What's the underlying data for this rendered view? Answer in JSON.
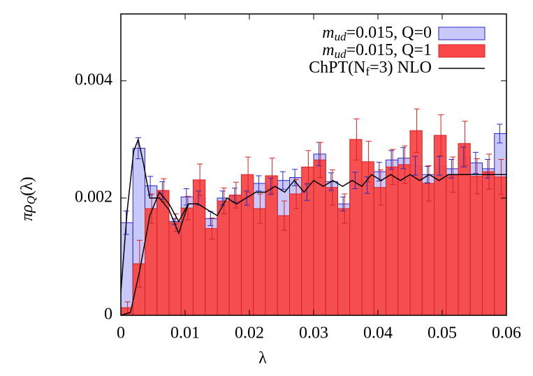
{
  "chart_data": {
    "type": "histogram",
    "xlabel": "λ",
    "ylabel": "πρQ(λ)",
    "bins": [
      0,
      0.001875,
      0.00375,
      0.005625,
      0.0075,
      0.009375,
      0.01125,
      0.013125,
      0.015,
      0.016875,
      0.01875,
      0.020625,
      0.0225,
      0.024375,
      0.02625,
      0.028125,
      0.03,
      0.031875,
      0.03375,
      0.035625,
      0.0375,
      0.039375,
      0.04125,
      0.043125,
      0.045,
      0.046875,
      0.04875,
      0.050625,
      0.0525,
      0.054375,
      0.05625,
      0.058125,
      0.06
    ],
    "series": [
      {
        "name": "mud=0.015, Q=0",
        "color": "#c8c8fa",
        "edge": "#2828c8",
        "values": [
          0.00158,
          0.00285,
          0.00221,
          0.00213,
          0.0016,
          0.00202,
          0.002,
          0.00165,
          0.002,
          0.00205,
          0.002,
          0.00225,
          0.0022,
          0.0023,
          0.00235,
          0.0021,
          0.00275,
          0.00228,
          0.0019,
          0.0023,
          0.00222,
          0.00245,
          0.00265,
          0.00268,
          0.00255,
          0.0024,
          0.00255,
          0.0025,
          0.0027,
          0.0026,
          0.0025,
          0.0031
        ],
        "errors": [
          0.0002,
          0.00018,
          0.00016,
          0.00015,
          5e-05,
          0.00014,
          0.00012,
          0.00012,
          0.00012,
          0.00012,
          0.00012,
          0.00013,
          0.00014,
          0.00015,
          0.00014,
          0.00014,
          0.0002,
          0.00015,
          0.00012,
          0.00014,
          0.00014,
          0.00016,
          0.00016,
          0.00018,
          0.00016,
          0.00014,
          0.00016,
          0.00016,
          0.00017,
          0.00018,
          0.00016,
          0.00016
        ]
      },
      {
        "name": "mud=0.015, Q=1",
        "color": "#f84848",
        "edge": "#d82020",
        "values": [
          0.00013,
          0.00088,
          0.00182,
          0.00213,
          0.00158,
          0.00183,
          0.00231,
          0.00148,
          0.00195,
          0.00205,
          0.0024,
          0.00182,
          0.00238,
          0.0017,
          0.00207,
          0.00253,
          0.00265,
          0.00218,
          0.00182,
          0.003,
          0.00262,
          0.00218,
          0.00253,
          0.00257,
          0.00315,
          0.00225,
          0.00307,
          0.0024,
          0.00293,
          0.00237,
          0.00245,
          0.00236
        ],
        "errors": [
          0.0001,
          0.0004,
          0.00025,
          0.0002,
          0.00015,
          0.0002,
          0.00027,
          0.00018,
          0.00022,
          0.00022,
          0.0003,
          0.00025,
          0.0003,
          0.00025,
          0.00025,
          0.00028,
          0.0003,
          0.0003,
          0.00025,
          0.00035,
          0.00035,
          0.0003,
          0.0003,
          0.00032,
          0.00037,
          0.0003,
          0.00035,
          0.0003,
          0.00038,
          0.0003,
          0.0003,
          0.0003
        ]
      }
    ],
    "lines": [
      {
        "name": "ChPT(Nf=3) NLO",
        "color": "#000000",
        "x": [
          0,
          0.001,
          0.002,
          0.0027,
          0.0035,
          0.0045,
          0.006,
          0.0075,
          0.009,
          0.0105,
          0.012,
          0.0135,
          0.015,
          0.0165,
          0.018,
          0.0195,
          0.021,
          0.0225,
          0.024,
          0.0255,
          0.027,
          0.0285,
          0.03,
          0.0315,
          0.033,
          0.0345,
          0.036,
          0.0375,
          0.039,
          0.0405,
          0.042,
          0.0435,
          0.045,
          0.0465,
          0.048,
          0.0495,
          0.051,
          0.0525,
          0.054,
          0.0555,
          0.057,
          0.0585,
          0.06
        ],
        "values": [
          0.0004,
          0.0018,
          0.0028,
          0.003,
          0.0026,
          0.002,
          0.002,
          0.0018,
          0.0014,
          0.0019,
          0.0019,
          0.0018,
          0.0017,
          0.002,
          0.0019,
          0.002,
          0.0021,
          0.0021,
          0.0022,
          0.0021,
          0.0023,
          0.0021,
          0.0023,
          0.0022,
          0.0023,
          0.0022,
          0.0023,
          0.0022,
          0.0024,
          0.0023,
          0.0024,
          0.0023,
          0.0024,
          0.0023,
          0.0024,
          0.0023,
          0.0024,
          0.0024,
          0.0024,
          0.0024,
          0.0024,
          0.0024,
          0.0024
        ]
      },
      {
        "color": "#000000",
        "x": [
          0,
          0.0015,
          0.003,
          0.0045,
          0.006,
          0.0075,
          0.009,
          0.0105,
          0.012
        ],
        "values": [
          0,
          5e-05,
          0.0008,
          0.0017,
          0.0021,
          0.0019,
          0.0016,
          0.0019,
          0.0019
        ]
      }
    ],
    "xlim": [
      0,
      0.06
    ],
    "ylim": [
      0,
      0.00514
    ],
    "xticks": [
      0,
      0.01,
      0.02,
      0.03,
      0.04,
      0.05,
      0.06
    ],
    "yticks": [
      0,
      0.002,
      0.004
    ]
  }
}
